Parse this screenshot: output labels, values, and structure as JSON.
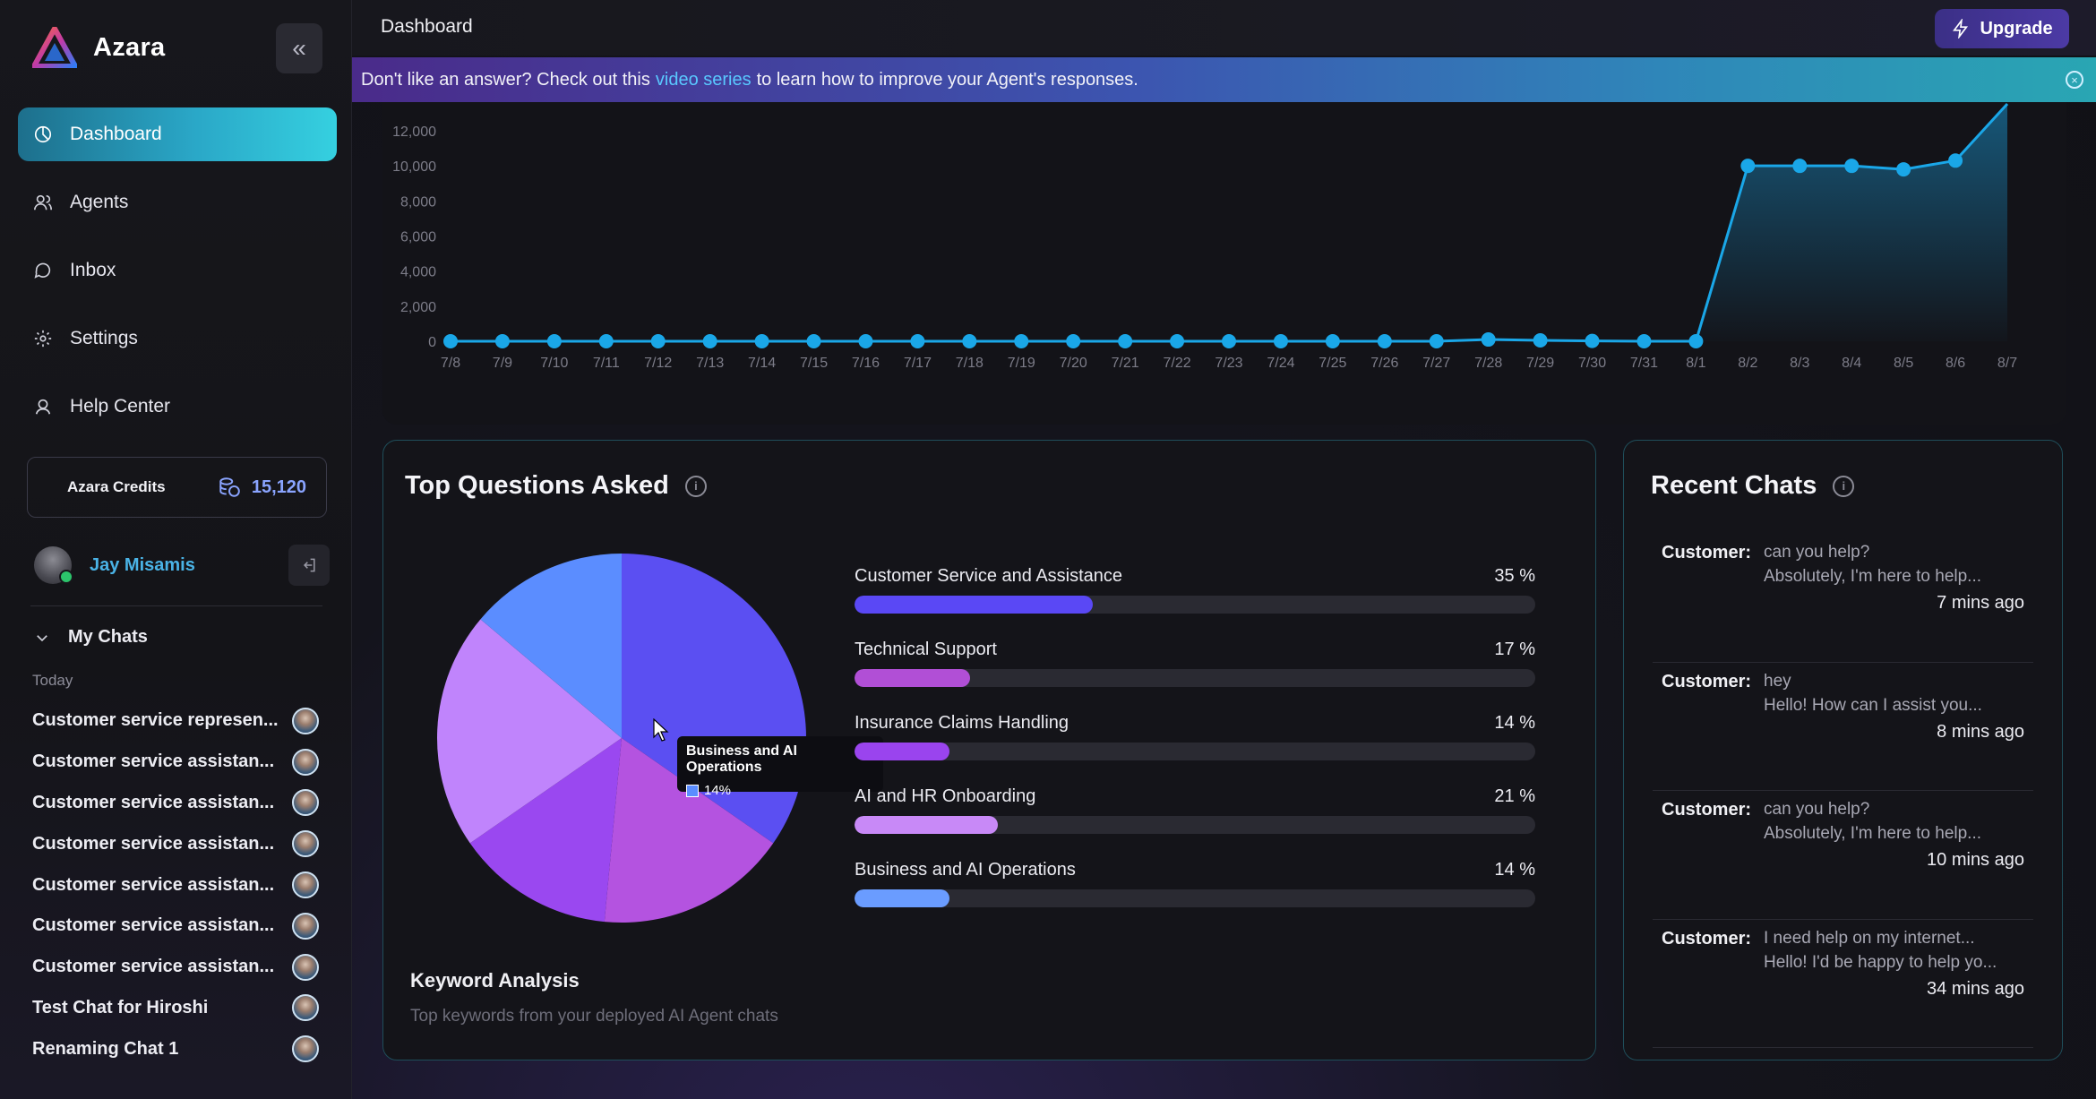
{
  "brand": {
    "name": "Azara"
  },
  "nav": {
    "items": [
      {
        "label": "Dashboard",
        "icon": "dashboard-icon",
        "active": true
      },
      {
        "label": "Agents",
        "icon": "agents-icon"
      },
      {
        "label": "Inbox",
        "icon": "inbox-icon"
      },
      {
        "label": "Settings",
        "icon": "gear-icon"
      },
      {
        "label": "Help Center",
        "icon": "help-icon"
      }
    ]
  },
  "credits": {
    "label": "Azara Credits",
    "value": "15,120"
  },
  "user": {
    "name": "Jay Misamis"
  },
  "my_chats": {
    "heading": "My Chats",
    "group": "Today",
    "items": [
      "Customer service represen...",
      "Customer service assistan...",
      "Customer service assistan...",
      "Customer service assistan...",
      "Customer service assistan...",
      "Customer service assistan...",
      "Customer service assistan...",
      "Test Chat for Hiroshi",
      "Renaming Chat 1"
    ]
  },
  "header": {
    "title": "Dashboard",
    "upgrade_label": "Upgrade"
  },
  "banner": {
    "before": "Don't like an answer? Check out this",
    "link": "video series",
    "after": "to learn how to improve your Agent's responses."
  },
  "chart_data": [
    {
      "type": "area",
      "x": [
        "7/8",
        "7/9",
        "7/10",
        "7/11",
        "7/12",
        "7/13",
        "7/14",
        "7/15",
        "7/16",
        "7/17",
        "7/18",
        "7/19",
        "7/20",
        "7/21",
        "7/22",
        "7/23",
        "7/24",
        "7/25",
        "7/26",
        "7/27",
        "7/28",
        "7/29",
        "7/30",
        "7/31",
        "8/1",
        "8/2",
        "8/3",
        "8/4",
        "8/5",
        "8/6",
        "8/7"
      ],
      "values": [
        0,
        0,
        0,
        0,
        0,
        0,
        0,
        0,
        0,
        0,
        0,
        0,
        0,
        0,
        0,
        0,
        0,
        0,
        0,
        0,
        100,
        50,
        20,
        0,
        0,
        10000,
        10000,
        10000,
        9800,
        10300,
        14000
      ],
      "yticks": [
        "0",
        "2,000",
        "4,000",
        "6,000",
        "8,000",
        "10,000",
        "12,000"
      ],
      "ylim": [
        0,
        12000
      ],
      "color": "#1aa7e8"
    },
    {
      "type": "pie",
      "categories": [
        "Customer Service and Assistance",
        "Technical Support",
        "Insurance Claims Handling",
        "AI and HR Onboarding",
        "Business and AI Operations"
      ],
      "values": [
        35,
        17,
        14,
        21,
        14
      ],
      "colors": [
        "#5b4ff2",
        "#b453e0",
        "#9a48f0",
        "#c084fc",
        "#5b8dff"
      ]
    }
  ],
  "top_questions": {
    "title": "Top Questions Asked",
    "tooltip": {
      "label": "Business and AI Operations",
      "value": "14%"
    },
    "items": [
      {
        "label": "Customer Service and Assistance",
        "pct": "35 %",
        "value": 35,
        "color": "#5a48f5"
      },
      {
        "label": "Technical Support",
        "pct": "17 %",
        "value": 17,
        "color": "#b14fd6"
      },
      {
        "label": "Insurance Claims Handling",
        "pct": "14 %",
        "value": 14,
        "color": "#9a44ee"
      },
      {
        "label": "AI and HR Onboarding",
        "pct": "21 %",
        "value": 21,
        "color": "#c889f7"
      },
      {
        "label": "Business and AI Operations",
        "pct": "14 %",
        "value": 14,
        "color": "#6a9cff"
      }
    ],
    "keyword_title": "Keyword Analysis",
    "keyword_sub": "Top keywords from your deployed AI Agent chats"
  },
  "recent_chats": {
    "title": "Recent Chats",
    "items": [
      {
        "who": "Customer:",
        "q": "can you help?",
        "a": "Absolutely, I'm here to help...",
        "time": "7 mins ago"
      },
      {
        "who": "Customer:",
        "q": "hey",
        "a": "Hello! How can I assist you...",
        "time": "8 mins ago"
      },
      {
        "who": "Customer:",
        "q": "can you help?",
        "a": "Absolutely, I'm here to help...",
        "time": "10 mins ago"
      },
      {
        "who": "Customer:",
        "q": "I need help on my internet...",
        "a": "Hello! I'd be happy to help yo...",
        "time": "34 mins ago"
      }
    ]
  }
}
